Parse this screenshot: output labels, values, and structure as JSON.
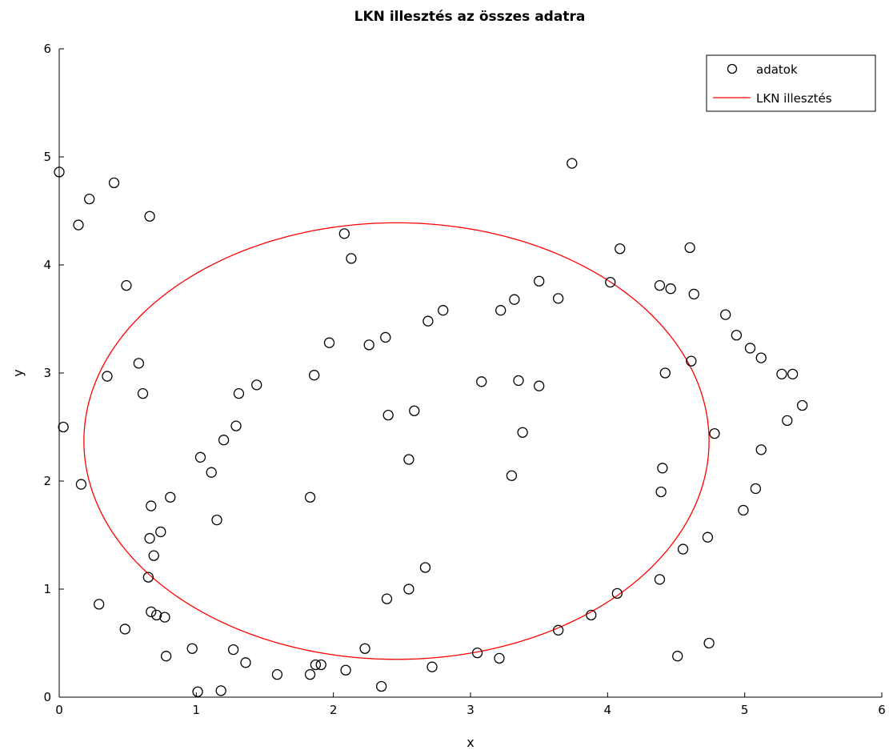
{
  "chart_data": {
    "type": "scatter",
    "title": "LKN illesztés az összes adatra",
    "xlabel": "x",
    "ylabel": "y",
    "xlim": [
      0,
      6
    ],
    "ylim": [
      0,
      6
    ],
    "x_ticks": [
      "0",
      "1",
      "2",
      "3",
      "4",
      "5",
      "6"
    ],
    "y_ticks": [
      "0",
      "1",
      "2",
      "3",
      "4",
      "5",
      "6"
    ],
    "grid": false,
    "legend_position": "top-right",
    "series": [
      {
        "name": "adatok",
        "kind": "markers",
        "marker": "circle",
        "color": "#000000",
        "points": [
          [
            0.0,
            4.86
          ],
          [
            0.03,
            2.5
          ],
          [
            0.14,
            4.37
          ],
          [
            0.16,
            1.97
          ],
          [
            0.22,
            4.61
          ],
          [
            0.29,
            0.86
          ],
          [
            0.35,
            2.97
          ],
          [
            0.4,
            4.76
          ],
          [
            0.48,
            0.63
          ],
          [
            0.49,
            3.81
          ],
          [
            0.58,
            3.09
          ],
          [
            0.61,
            2.81
          ],
          [
            0.65,
            1.11
          ],
          [
            0.66,
            4.45
          ],
          [
            0.66,
            1.47
          ],
          [
            0.67,
            1.77
          ],
          [
            0.67,
            0.79
          ],
          [
            0.69,
            1.31
          ],
          [
            0.71,
            0.76
          ],
          [
            0.74,
            1.53
          ],
          [
            0.77,
            0.74
          ],
          [
            0.78,
            0.38
          ],
          [
            0.81,
            1.85
          ],
          [
            0.97,
            0.45
          ],
          [
            1.01,
            0.05
          ],
          [
            1.03,
            2.22
          ],
          [
            1.11,
            2.08
          ],
          [
            1.15,
            1.64
          ],
          [
            1.18,
            0.06
          ],
          [
            1.2,
            2.38
          ],
          [
            1.27,
            0.44
          ],
          [
            1.29,
            2.51
          ],
          [
            1.31,
            2.81
          ],
          [
            1.36,
            0.32
          ],
          [
            1.44,
            2.89
          ],
          [
            1.59,
            0.21
          ],
          [
            1.83,
            0.21
          ],
          [
            1.83,
            1.85
          ],
          [
            1.86,
            2.98
          ],
          [
            1.87,
            0.3
          ],
          [
            1.91,
            0.3
          ],
          [
            1.97,
            3.28
          ],
          [
            2.08,
            4.29
          ],
          [
            2.09,
            0.25
          ],
          [
            2.13,
            4.06
          ],
          [
            2.23,
            0.45
          ],
          [
            2.26,
            3.26
          ],
          [
            2.35,
            0.1
          ],
          [
            2.38,
            3.33
          ],
          [
            2.39,
            0.91
          ],
          [
            2.4,
            2.61
          ],
          [
            2.55,
            1.0
          ],
          [
            2.55,
            2.2
          ],
          [
            2.59,
            2.65
          ],
          [
            2.67,
            1.2
          ],
          [
            2.69,
            3.48
          ],
          [
            2.72,
            0.28
          ],
          [
            2.8,
            3.58
          ],
          [
            3.05,
            0.41
          ],
          [
            3.08,
            2.92
          ],
          [
            3.21,
            0.36
          ],
          [
            3.22,
            3.58
          ],
          [
            3.3,
            2.05
          ],
          [
            3.32,
            3.68
          ],
          [
            3.35,
            2.93
          ],
          [
            3.38,
            2.45
          ],
          [
            3.5,
            3.85
          ],
          [
            3.5,
            2.88
          ],
          [
            3.64,
            0.62
          ],
          [
            3.64,
            3.69
          ],
          [
            3.74,
            4.94
          ],
          [
            3.88,
            0.76
          ],
          [
            4.02,
            3.84
          ],
          [
            4.07,
            0.96
          ],
          [
            4.09,
            4.15
          ],
          [
            4.38,
            3.81
          ],
          [
            4.38,
            1.09
          ],
          [
            4.39,
            1.9
          ],
          [
            4.4,
            2.12
          ],
          [
            4.42,
            3.0
          ],
          [
            4.46,
            3.78
          ],
          [
            4.51,
            0.38
          ],
          [
            4.55,
            1.37
          ],
          [
            4.6,
            4.16
          ],
          [
            4.61,
            3.11
          ],
          [
            4.63,
            3.73
          ],
          [
            4.73,
            1.48
          ],
          [
            4.74,
            0.5
          ],
          [
            4.78,
            2.44
          ],
          [
            4.86,
            3.54
          ],
          [
            4.94,
            3.35
          ],
          [
            4.99,
            1.73
          ],
          [
            5.04,
            3.23
          ],
          [
            5.08,
            1.93
          ],
          [
            5.12,
            3.14
          ],
          [
            5.12,
            2.29
          ],
          [
            5.27,
            2.99
          ],
          [
            5.31,
            2.56
          ],
          [
            5.35,
            2.99
          ],
          [
            5.42,
            2.7
          ]
        ]
      },
      {
        "name": "LKN illesztés",
        "kind": "curve",
        "shape": "ellipse",
        "color": "#ff0000",
        "center": [
          2.46,
          2.37
        ],
        "semi_axes": [
          2.28,
          2.02
        ],
        "rotation_deg": 0
      }
    ]
  }
}
